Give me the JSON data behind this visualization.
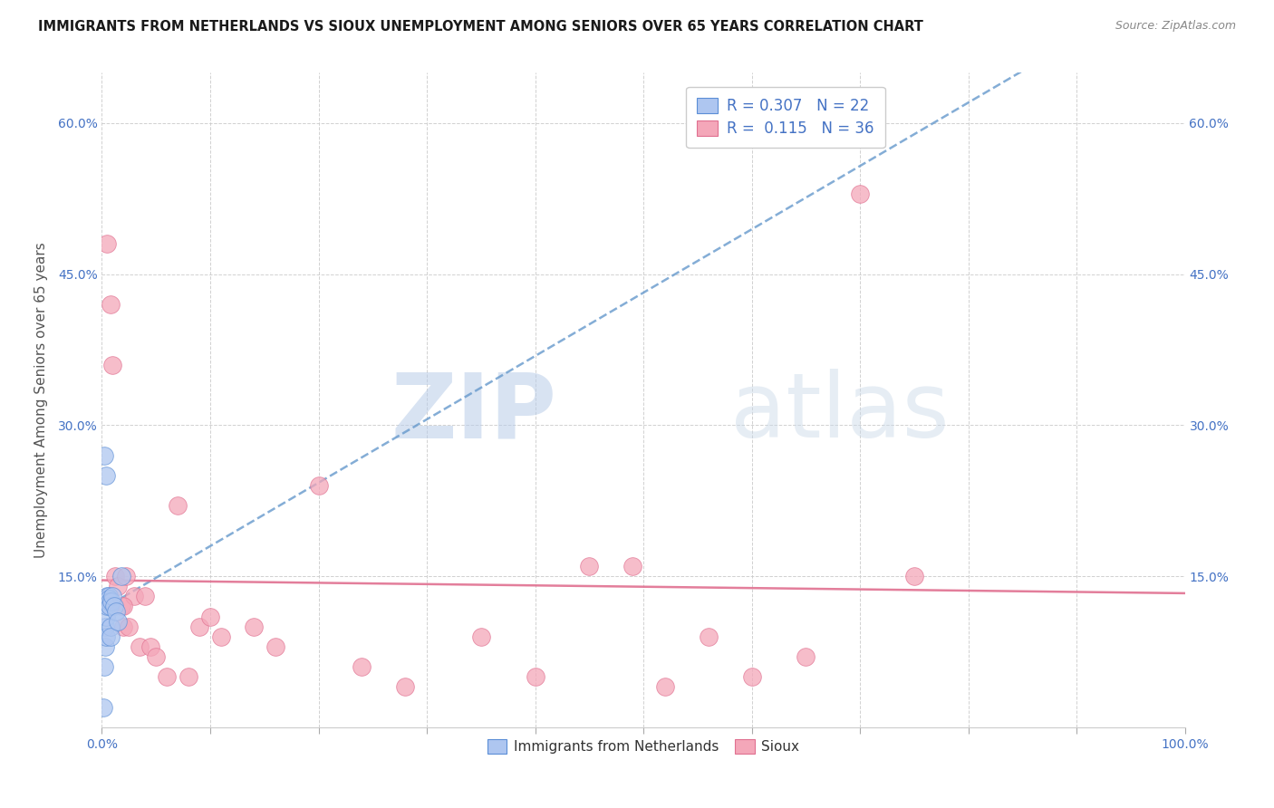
{
  "title": "IMMIGRANTS FROM NETHERLANDS VS SIOUX UNEMPLOYMENT AMONG SENIORS OVER 65 YEARS CORRELATION CHART",
  "source": "Source: ZipAtlas.com",
  "ylabel": "Unemployment Among Seniors over 65 years",
  "r_netherlands": 0.307,
  "n_netherlands": 22,
  "r_sioux": 0.115,
  "n_sioux": 36,
  "color_netherlands_fill": "#aec6f0",
  "color_netherlands_edge": "#5b8ed6",
  "color_sioux_fill": "#f4a7b9",
  "color_sioux_edge": "#e07090",
  "color_nl_line": "#6699cc",
  "color_si_line": "#e07090",
  "watermark_zip": "ZIP",
  "watermark_atlas": "atlas",
  "xlim": [
    0.0,
    1.0
  ],
  "ylim": [
    0.0,
    0.65
  ],
  "xticks": [
    0.0,
    0.1,
    0.2,
    0.3,
    0.4,
    0.5,
    0.6,
    0.7,
    0.8,
    0.9,
    1.0
  ],
  "yticks": [
    0.0,
    0.15,
    0.3,
    0.45,
    0.6
  ],
  "right_ytick_labels": [
    "",
    "15.0%",
    "30.0%",
    "45.0%",
    "60.0%"
  ],
  "netherlands_x": [
    0.001,
    0.002,
    0.003,
    0.003,
    0.004,
    0.004,
    0.005,
    0.005,
    0.006,
    0.006,
    0.007,
    0.007,
    0.008,
    0.008,
    0.009,
    0.01,
    0.011,
    0.013,
    0.015,
    0.018,
    0.002,
    0.004
  ],
  "netherlands_y": [
    0.02,
    0.06,
    0.08,
    0.1,
    0.09,
    0.11,
    0.12,
    0.13,
    0.13,
    0.128,
    0.125,
    0.12,
    0.1,
    0.09,
    0.125,
    0.13,
    0.12,
    0.115,
    0.105,
    0.15,
    0.27,
    0.25
  ],
  "sioux_x": [
    0.005,
    0.008,
    0.01,
    0.012,
    0.015,
    0.018,
    0.02,
    0.022,
    0.025,
    0.03,
    0.035,
    0.04,
    0.045,
    0.05,
    0.06,
    0.07,
    0.08,
    0.09,
    0.1,
    0.11,
    0.14,
    0.16,
    0.2,
    0.24,
    0.28,
    0.35,
    0.4,
    0.45,
    0.49,
    0.52,
    0.56,
    0.6,
    0.65,
    0.7,
    0.75,
    0.02
  ],
  "sioux_y": [
    0.48,
    0.42,
    0.36,
    0.15,
    0.14,
    0.12,
    0.1,
    0.15,
    0.1,
    0.13,
    0.08,
    0.13,
    0.08,
    0.07,
    0.05,
    0.22,
    0.05,
    0.1,
    0.11,
    0.09,
    0.1,
    0.08,
    0.24,
    0.06,
    0.04,
    0.09,
    0.05,
    0.16,
    0.16,
    0.04,
    0.09,
    0.05,
    0.07,
    0.53,
    0.15,
    0.12
  ]
}
